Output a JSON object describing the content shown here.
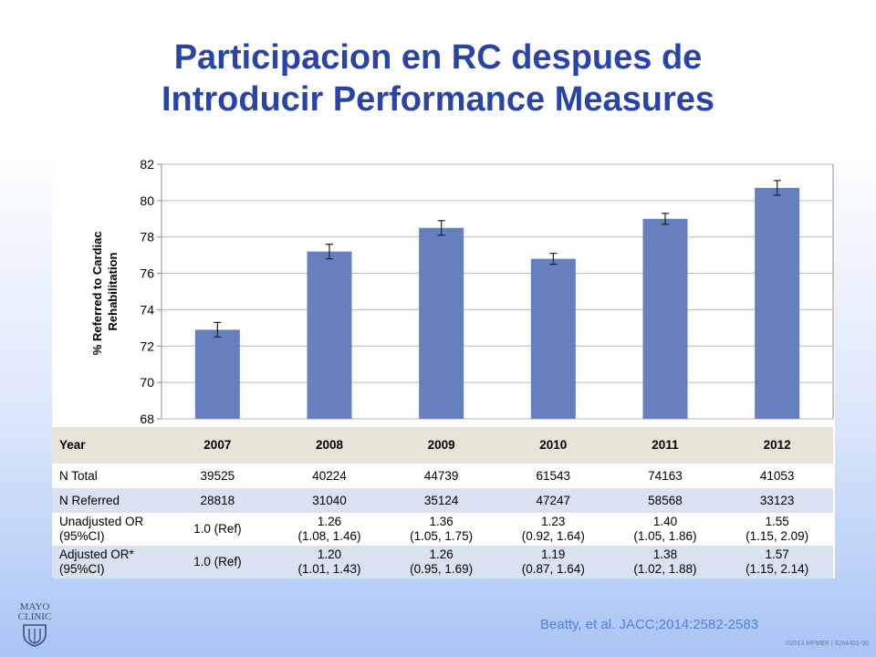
{
  "title": {
    "line1": "Participacion en RC despues de",
    "line2": "Introducir Performance Measures"
  },
  "chart_data": {
    "type": "bar",
    "categories": [
      "2007",
      "2008",
      "2009",
      "2010",
      "2011",
      "2012"
    ],
    "values": [
      72.9,
      77.2,
      78.5,
      76.8,
      79.0,
      80.7
    ],
    "error_low": [
      72.5,
      76.8,
      78.1,
      76.5,
      78.7,
      80.3
    ],
    "error_high": [
      73.3,
      77.6,
      78.9,
      77.1,
      79.3,
      81.1
    ],
    "ylim": [
      68,
      82
    ],
    "yticks": [
      "68",
      "70",
      "72",
      "74",
      "76",
      "78",
      "80",
      "82"
    ],
    "ylabel_line1": "% Referred to Cardiac",
    "ylabel_line2": "Rehabilitation",
    "xlabel": "",
    "grid": true,
    "bar_color": "#6580bd",
    "grid_color": "#b9b9b9"
  },
  "table": {
    "header": [
      "Year",
      "2007",
      "2008",
      "2009",
      "2010",
      "2011",
      "2012"
    ],
    "rows": [
      {
        "label": [
          "N Total"
        ],
        "cells": [
          [
            "39525"
          ],
          [
            "40224"
          ],
          [
            "44739"
          ],
          [
            "61543"
          ],
          [
            "74163"
          ],
          [
            "41053"
          ]
        ]
      },
      {
        "label": [
          "N Referred"
        ],
        "cells": [
          [
            "28818"
          ],
          [
            "31040"
          ],
          [
            "35124"
          ],
          [
            "47247"
          ],
          [
            "58568"
          ],
          [
            "33123"
          ]
        ]
      },
      {
        "label": [
          "Unadjusted OR",
          "(95%CI)"
        ],
        "cells": [
          [
            "1.0 (Ref)"
          ],
          [
            "1.26",
            "(1.08, 1.46)"
          ],
          [
            "1.36",
            "(1.05, 1.75)"
          ],
          [
            "1.23",
            "(0.92, 1.64)"
          ],
          [
            "1.40",
            "(1.05, 1.86)"
          ],
          [
            "1.55",
            "(1.15, 2.09)"
          ]
        ]
      },
      {
        "label": [
          "Adjusted OR*",
          "(95%CI)"
        ],
        "cells": [
          [
            "1.0 (Ref)"
          ],
          [
            "1.20",
            "(1.01, 1.43)"
          ],
          [
            "1.26",
            "(0.95, 1.69)"
          ],
          [
            "1.19",
            "(0.87, 1.64)"
          ],
          [
            "1.38",
            "(1.02, 1.88)"
          ],
          [
            "1.57",
            "(1.15, 2.14)"
          ]
        ]
      }
    ],
    "header_bg": "#e7e3d6",
    "alt_row_bg": "#d9e2f1"
  },
  "logo": {
    "line1": "MAYO",
    "line2": "CLINIC"
  },
  "citation": "Beatty, et al. JACC;2014:2582-2583",
  "copyright": "©2013 MFMER  |  3264451-50",
  "colors": {
    "title": "#2a44a6",
    "citation": "#4f7fdc"
  }
}
